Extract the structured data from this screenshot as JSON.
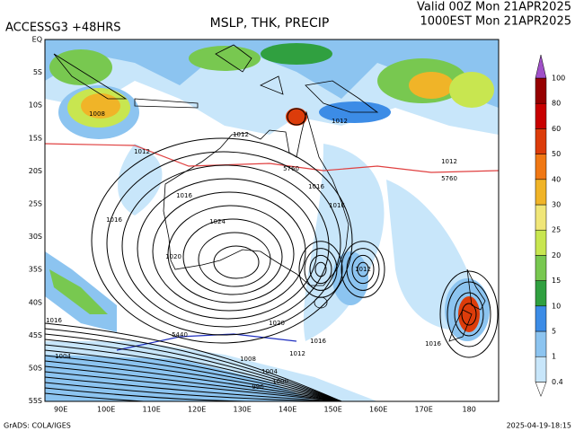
{
  "header": {
    "model": "ACCESSG3 +48HRS",
    "title": "MSLP, THK, PRECIP",
    "valid": "Valid 00Z Mon 21APR2025",
    "local": "1000EST Mon 21APR2025"
  },
  "map": {
    "lat_labels": [
      "EQ",
      "5S",
      "10S",
      "15S",
      "20S",
      "25S",
      "30S",
      "35S",
      "40S",
      "45S",
      "50S",
      "55S"
    ],
    "lon_labels": [
      "90E",
      "100E",
      "110E",
      "120E",
      "130E",
      "140E",
      "150E",
      "160E",
      "170E",
      "180"
    ],
    "contour_labels": [
      "1008",
      "1012",
      "1012",
      "1012",
      "1012",
      "1016",
      "1016",
      "1024",
      "1020",
      "1016",
      "1016",
      "1012",
      "1020",
      "1016",
      "1012",
      "1008",
      "1004",
      "1000",
      "996",
      "1016",
      "1016",
      "1004",
      "5760",
      "5760",
      "5440"
    ]
  },
  "colorbar": {
    "levels": [
      0.4,
      1,
      5,
      10,
      15,
      20,
      25,
      30,
      40,
      50,
      60,
      80,
      100
    ],
    "colors": [
      "#ffffff",
      "#c8e6fa",
      "#8cc4f0",
      "#3c8ce6",
      "#30a040",
      "#78c850",
      "#c8e650",
      "#f0e678",
      "#f0b428",
      "#f07814",
      "#dc3c0a",
      "#c80000",
      "#960000",
      "#a050c8"
    ]
  },
  "footer": {
    "credit": "GrADS: COLA/IGES",
    "timestamp": "2025-04-19-18:15"
  }
}
